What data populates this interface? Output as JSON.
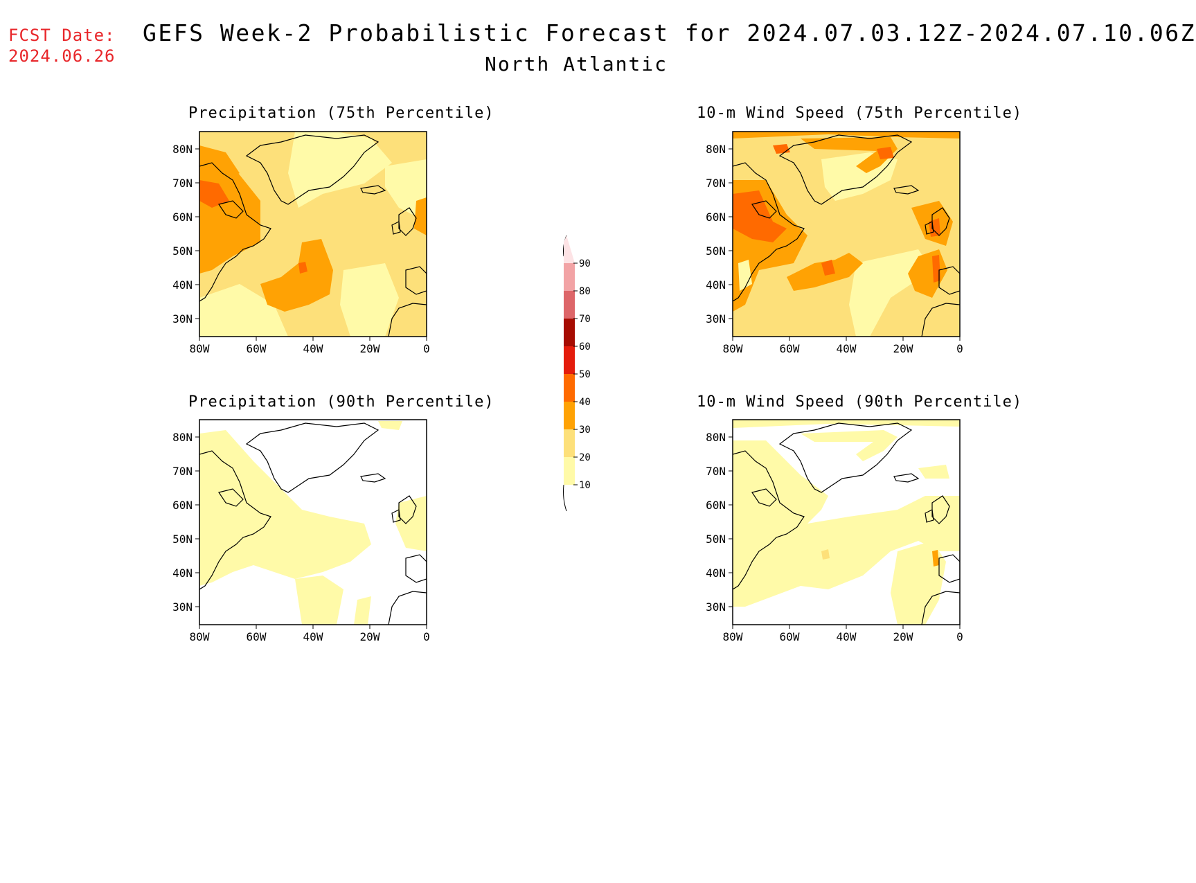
{
  "header": {
    "fcst_label": "FCST Date:",
    "fcst_date": "2024.06.26",
    "title": "GEFS Week-2 Probabilistic Forecast for 2024.07.03.12Z-2024.07.10.06Z",
    "region": "North Atlantic"
  },
  "panels": [
    {
      "title": "Precipitation (75th Percentile)"
    },
    {
      "title": "10-m Wind Speed (75th Percentile)"
    },
    {
      "title": "Precipitation (90th Percentile)"
    },
    {
      "title": "10-m Wind Speed (90th Percentile)"
    }
  ],
  "axes": {
    "lat_ticks": [
      "80N",
      "70N",
      "60N",
      "50N",
      "40N",
      "30N"
    ],
    "lon_ticks": [
      "80W",
      "60W",
      "40W",
      "20W",
      "0"
    ]
  },
  "colorbar": {
    "levels": [
      "10",
      "20",
      "30",
      "40",
      "50",
      "60",
      "70",
      "80",
      "90"
    ],
    "colors": [
      "#fffaa8",
      "#fde07a",
      "#ffa204",
      "#ff6a00",
      "#e41c0c",
      "#a60c02",
      "#dd6669",
      "#f2a3a5",
      "#fde3e5"
    ]
  }
}
